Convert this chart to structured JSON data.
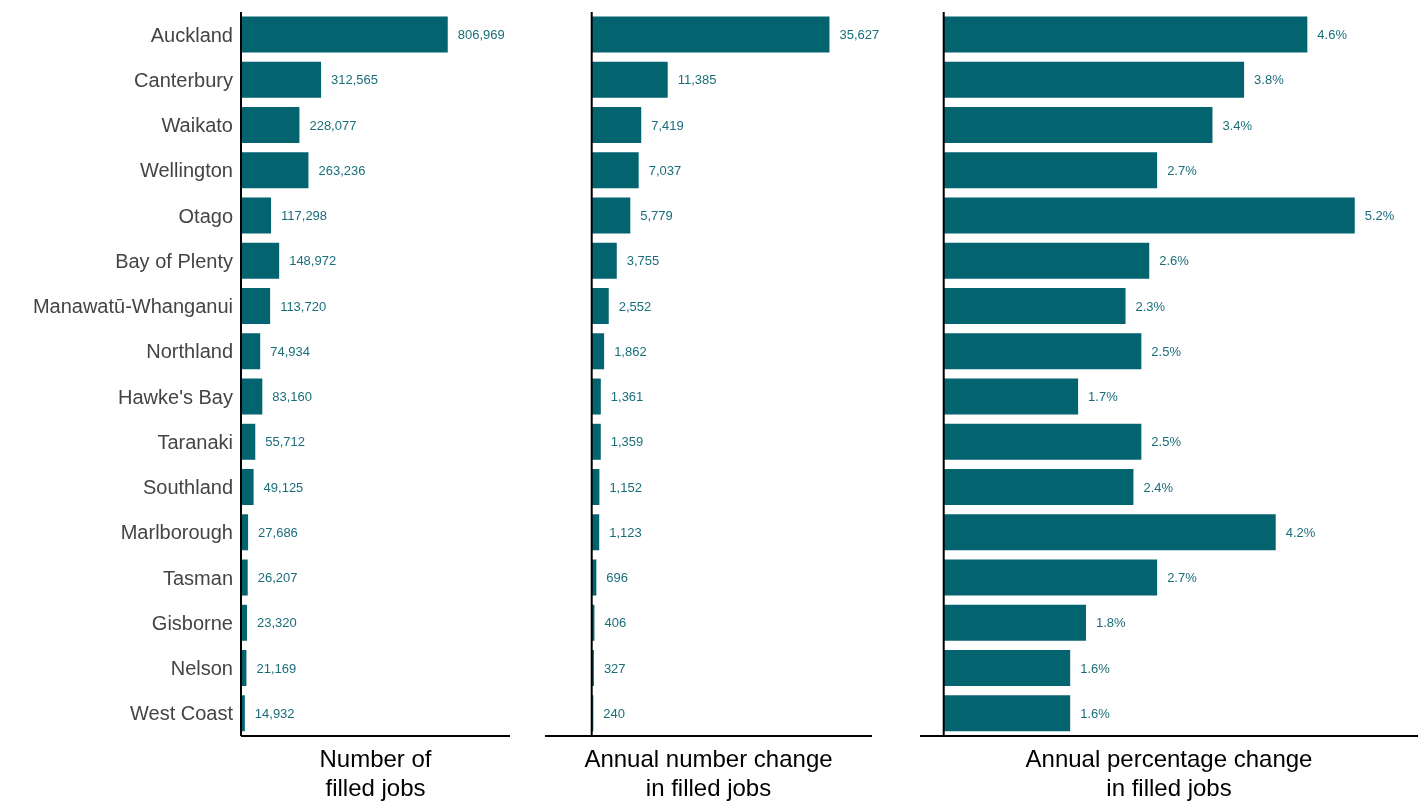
{
  "chart_data": [
    {
      "type": "bar",
      "orientation": "horizontal",
      "xlabel": "Number of\nfilled jobs",
      "categories": [
        "Auckland",
        "Canterbury",
        "Waikato",
        "Wellington",
        "Otago",
        "Bay of Plenty",
        "Manawatū-Whanganui",
        "Northland",
        "Hawke's Bay",
        "Taranaki",
        "Southland",
        "Marlborough",
        "Tasman",
        "Gisborne",
        "Nelson",
        "West Coast"
      ],
      "color": "#03636f",
      "values": [
        806969,
        312565,
        228077,
        263236,
        117298,
        148972,
        113720,
        74934,
        83160,
        55712,
        49125,
        27686,
        26207,
        23320,
        21169,
        14932
      ],
      "value_labels": [
        "806,969",
        "312,565",
        "228,077",
        "263,236",
        "117,298",
        "148,972",
        "113,720",
        "74,934",
        "83,160",
        "55,712",
        "49,125",
        "27,686",
        "26,207",
        "23,320",
        "21,169",
        "14,932"
      ],
      "xlim": [
        0,
        1050000
      ],
      "tick_labels": "y"
    },
    {
      "type": "bar",
      "orientation": "horizontal",
      "xlabel": "Annual number change\nin filled jobs",
      "categories": [
        null,
        null,
        null,
        null,
        null,
        null,
        null,
        null,
        null,
        null,
        null,
        null,
        null,
        null,
        null,
        null
      ],
      "color": "#03636f",
      "values": [
        35627,
        11385,
        7419,
        7037,
        5779,
        3755,
        2552,
        1862,
        1361,
        1359,
        1152,
        1123,
        696,
        406,
        327,
        240
      ],
      "value_labels": [
        "35,627",
        "11,385",
        "7,419",
        "7,037",
        "5,779",
        "3,755",
        "2,552",
        "1,862",
        "1,361",
        "1,359",
        "1,152",
        "1,123",
        "696",
        "406",
        "327",
        "240"
      ],
      "xlim": [
        -7000,
        42000
      ],
      "tick_labels": false
    },
    {
      "type": "bar",
      "orientation": "horizontal",
      "xlabel": "Annual percentage change\nin filled jobs",
      "categories": [
        null,
        null,
        null,
        null,
        null,
        null,
        null,
        null,
        null,
        null,
        null,
        null,
        null,
        null,
        null,
        null
      ],
      "color": "#03636f",
      "values": [
        4.6,
        3.8,
        3.4,
        2.7,
        5.2,
        2.6,
        2.3,
        2.5,
        1.7,
        2.5,
        2.4,
        4.2,
        2.7,
        1.8,
        1.6,
        1.6
      ],
      "value_labels": [
        "4.6%",
        "3.8%",
        "3.4%",
        "2.7%",
        "5.2%",
        "2.6%",
        "2.3%",
        "2.5%",
        "1.7%",
        "2.5%",
        "2.4%",
        "4.2%",
        "2.7%",
        "1.8%",
        "1.6%",
        "1.6%"
      ],
      "xlim": [
        -0.3,
        6
      ],
      "tick_labels": false
    }
  ]
}
